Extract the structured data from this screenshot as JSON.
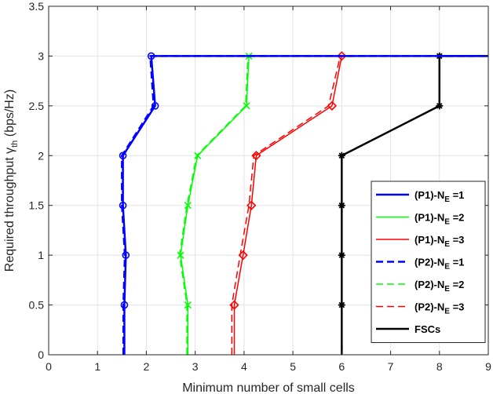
{
  "chart_data": {
    "type": "line",
    "title": "",
    "xlabel": "Minimum number of small cells",
    "ylabel_main": "Required throughput γ",
    "ylabel_sub": "th",
    "ylabel_unit": " (bps/Hz)",
    "xlim": [
      0,
      9
    ],
    "ylim": [
      0,
      3.5
    ],
    "xticks": [
      0,
      1,
      2,
      3,
      4,
      5,
      6,
      7,
      8,
      9
    ],
    "yticks": [
      0,
      0.5,
      1,
      1.5,
      2,
      2.5,
      3,
      3.5
    ],
    "grid": true,
    "legend_position": "bottom-right",
    "series": [
      {
        "name": "(P1)-N_E =1",
        "legend_main": "(P1)-N",
        "legend_sub": "E",
        "legend_tail": " =1",
        "color": "#0000ff",
        "dash": "solid",
        "width": 2.5,
        "marker": "circle",
        "points": [
          [
            1.55,
            0
          ],
          [
            1.55,
            0.5
          ],
          [
            1.58,
            1
          ],
          [
            1.52,
            1.5
          ],
          [
            1.52,
            2
          ],
          [
            2.18,
            2.5
          ],
          [
            2.1,
            3
          ],
          [
            9,
            3
          ]
        ],
        "marker_points": [
          [
            1.55,
            0.5
          ],
          [
            1.58,
            1
          ],
          [
            1.52,
            1.5
          ],
          [
            1.52,
            2
          ],
          [
            2.18,
            2.5
          ],
          [
            2.1,
            3
          ]
        ]
      },
      {
        "name": "(P1)-N_E =2",
        "legend_main": "(P1)-N",
        "legend_sub": "E",
        "legend_tail": " =2",
        "color": "#00ff00",
        "dash": "solid",
        "width": 1.5,
        "marker": "x",
        "points": [
          [
            2.85,
            0
          ],
          [
            2.85,
            0.5
          ],
          [
            2.7,
            1
          ],
          [
            2.85,
            1.5
          ],
          [
            3.05,
            2
          ],
          [
            4.05,
            2.5
          ],
          [
            4.1,
            3
          ],
          [
            9,
            3
          ]
        ],
        "marker_points": [
          [
            2.85,
            0.5
          ],
          [
            2.7,
            1
          ],
          [
            2.85,
            1.5
          ],
          [
            3.05,
            2
          ],
          [
            4.05,
            2.5
          ],
          [
            4.1,
            3
          ]
        ]
      },
      {
        "name": "(P1)-N_E =3",
        "legend_main": "(P1)-N",
        "legend_sub": "E",
        "legend_tail": " =3",
        "color": "#ff0000",
        "dash": "solid",
        "width": 1.5,
        "marker": "diamond",
        "points": [
          [
            3.8,
            0
          ],
          [
            3.8,
            0.5
          ],
          [
            3.98,
            1
          ],
          [
            4.15,
            1.5
          ],
          [
            4.25,
            2
          ],
          [
            5.8,
            2.5
          ],
          [
            6.0,
            3
          ],
          [
            9,
            3
          ]
        ],
        "marker_points": [
          [
            3.8,
            0.5
          ],
          [
            3.98,
            1
          ],
          [
            4.15,
            1.5
          ],
          [
            4.25,
            2
          ],
          [
            5.8,
            2.5
          ],
          [
            6.0,
            3
          ]
        ]
      },
      {
        "name": "(P2)-N_E =1",
        "legend_main": "(P2)-N",
        "legend_sub": "E",
        "legend_tail": " =1",
        "color": "#0000ff",
        "dash": "dashed",
        "width": 2.5,
        "marker": "none",
        "points": [
          [
            1.53,
            0
          ],
          [
            1.53,
            0.5
          ],
          [
            1.56,
            1
          ],
          [
            1.5,
            1.5
          ],
          [
            1.5,
            2
          ],
          [
            2.15,
            2.5
          ],
          [
            2.08,
            3
          ],
          [
            9,
            3
          ]
        ],
        "marker_points": []
      },
      {
        "name": "(P2)-N_E =2",
        "legend_main": "(P2)-N",
        "legend_sub": "E",
        "legend_tail": " =2",
        "color": "#00ff00",
        "dash": "dashed",
        "width": 1.5,
        "marker": "none",
        "points": [
          [
            2.83,
            0
          ],
          [
            2.83,
            0.5
          ],
          [
            2.68,
            1
          ],
          [
            2.83,
            1.5
          ],
          [
            3.03,
            2
          ],
          [
            4.03,
            2.5
          ],
          [
            4.08,
            3
          ],
          [
            9,
            3
          ]
        ],
        "marker_points": []
      },
      {
        "name": "(P2)-N_E =3",
        "legend_main": "(P2)-N",
        "legend_sub": "E",
        "legend_tail": " =3",
        "color": "#ff0000",
        "dash": "dashed",
        "width": 1.5,
        "marker": "none",
        "points": [
          [
            3.75,
            0
          ],
          [
            3.75,
            0.5
          ],
          [
            3.92,
            1
          ],
          [
            4.1,
            1.5
          ],
          [
            4.2,
            2
          ],
          [
            5.73,
            2.5
          ],
          [
            5.97,
            3
          ],
          [
            9,
            3
          ]
        ],
        "marker_points": []
      },
      {
        "name": "FSCs",
        "legend_main": "FSCs",
        "legend_sub": "",
        "legend_tail": "",
        "color": "#000000",
        "dash": "solid",
        "width": 2.5,
        "marker": "asterisk",
        "points": [
          [
            6,
            0
          ],
          [
            6,
            0.5
          ],
          [
            6,
            1
          ],
          [
            6,
            1.5
          ],
          [
            6,
            2
          ],
          [
            8,
            2.5
          ],
          [
            8,
            3
          ],
          [
            9,
            3
          ]
        ],
        "marker_points": [
          [
            6,
            0.5
          ],
          [
            6,
            1
          ],
          [
            6,
            1.5
          ],
          [
            6,
            2
          ],
          [
            8,
            2.5
          ],
          [
            8,
            3
          ]
        ]
      }
    ]
  }
}
